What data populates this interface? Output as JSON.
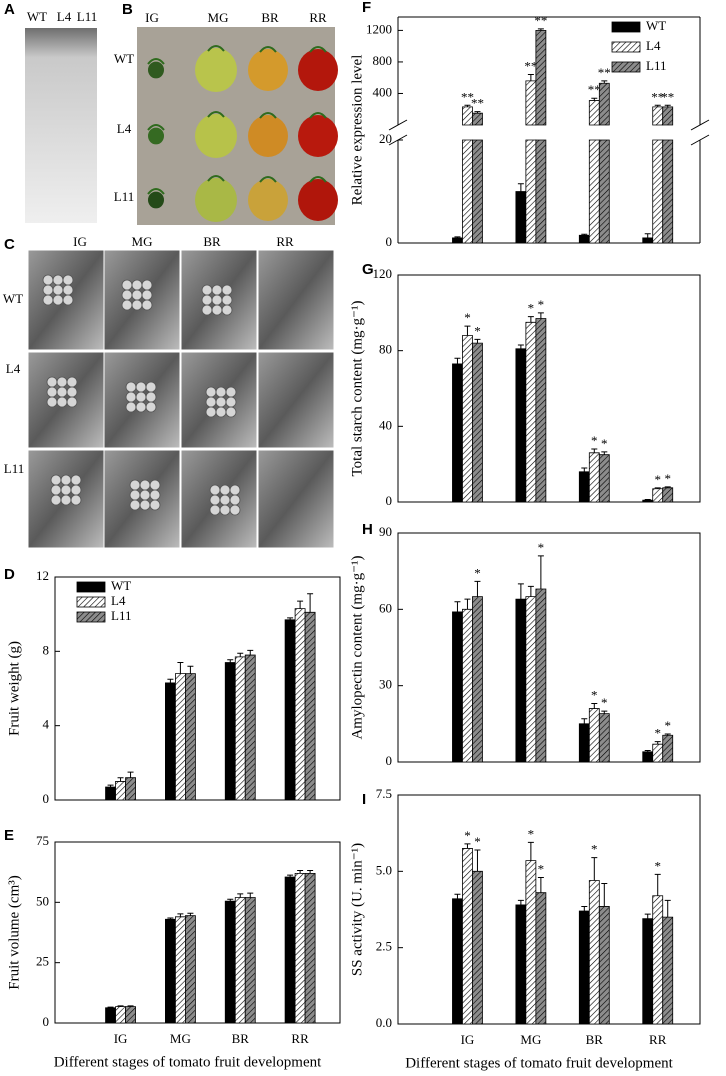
{
  "panel_a": {
    "letter": "A",
    "lanes": [
      "WT",
      "L4",
      "L11"
    ]
  },
  "panel_b": {
    "letter": "B",
    "columns": [
      "IG",
      "MG",
      "BR",
      "RR"
    ],
    "rows": [
      "WT",
      "L4",
      "L11"
    ]
  },
  "panel_c": {
    "letter": "C",
    "columns": [
      "IG",
      "MG",
      "BR",
      "RR"
    ],
    "rows": [
      "WT",
      "L4",
      "L11"
    ]
  },
  "chart_data": [
    {
      "type": "bar",
      "letter": "D",
      "ylabel": "Fruit weight (g)",
      "ylim": [
        0,
        12
      ],
      "yticks": [
        0,
        4,
        8,
        12
      ],
      "legend": "upper left",
      "series": [
        {
          "name": "WT",
          "color": "#000000",
          "hatch": false,
          "values": [
            0.7,
            6.3,
            7.4,
            9.7
          ],
          "errors": [
            0.1,
            0.2,
            0.15,
            0.1
          ]
        },
        {
          "name": "L4",
          "color": "#ffffff",
          "hatch": true,
          "values": [
            1.0,
            6.8,
            7.7,
            10.3
          ],
          "errors": [
            0.2,
            0.6,
            0.2,
            0.4
          ]
        },
        {
          "name": "L11",
          "color": "#8c8c8c",
          "hatch": true,
          "values": [
            1.2,
            6.8,
            7.8,
            10.1
          ],
          "errors": [
            0.3,
            0.4,
            0.25,
            1.0
          ]
        }
      ]
    },
    {
      "type": "bar",
      "letter": "E",
      "ylabel": "Fruit volume (cm³)",
      "xlabel": "Different stages of tomato fruit development",
      "categories": [
        "IG",
        "MG",
        "BR",
        "RR"
      ],
      "ylim": [
        0,
        75
      ],
      "yticks": [
        0,
        25,
        50,
        75
      ],
      "series": [
        {
          "color": "#000000",
          "hatch": false,
          "values": [
            6.3,
            43,
            50.5,
            60.5
          ],
          "errors": [
            0.3,
            0.5,
            0.8,
            0.8
          ]
        },
        {
          "color": "#ffffff",
          "hatch": true,
          "values": [
            6.8,
            44,
            52,
            62
          ],
          "errors": [
            0.3,
            1.2,
            1.5,
            1.2
          ]
        },
        {
          "color": "#8c8c8c",
          "hatch": true,
          "values": [
            6.8,
            44.5,
            52,
            62
          ],
          "errors": [
            0.3,
            1.0,
            1.8,
            1.2
          ]
        }
      ]
    },
    {
      "type": "bar",
      "letter": "F",
      "ylabel": "Relative expression level",
      "ylim": [
        0,
        20
      ],
      "yticks": [
        0,
        20
      ],
      "ylim_upper": [
        0,
        1370
      ],
      "yticks_upper": [
        400,
        800,
        1200
      ],
      "legend": "upper right",
      "series": [
        {
          "name": "WT",
          "color": "#000000",
          "hatch": false,
          "values": [
            1,
            10,
            1.5,
            1
          ],
          "errors": [
            0.2,
            1.5,
            0.2,
            0.8
          ]
        },
        {
          "name": "L4",
          "color": "#ffffff",
          "hatch": true,
          "values": [
            230,
            560,
            310,
            230
          ],
          "errors": [
            20,
            80,
            30,
            20
          ],
          "sig": [
            "**",
            "**",
            "**",
            "**"
          ]
        },
        {
          "name": "L11",
          "color": "#8c8c8c",
          "hatch": true,
          "values": [
            150,
            1200,
            530,
            230
          ],
          "errors": [
            20,
            20,
            30,
            20
          ],
          "sig": [
            "**",
            "**",
            "**",
            "**"
          ]
        }
      ]
    },
    {
      "type": "bar",
      "letter": "G",
      "ylabel": "Total starch content (mg·g⁻¹)",
      "ylim": [
        0,
        120
      ],
      "yticks": [
        0,
        40,
        80,
        120
      ],
      "series": [
        {
          "color": "#000000",
          "hatch": false,
          "values": [
            73,
            81,
            16,
            1
          ],
          "errors": [
            3,
            2,
            2,
            0.3
          ]
        },
        {
          "color": "#ffffff",
          "hatch": true,
          "values": [
            88,
            95,
            26,
            7
          ],
          "errors": [
            5,
            3,
            2,
            0.5
          ],
          "sig": [
            "*",
            "*",
            "*",
            "*"
          ]
        },
        {
          "color": "#8c8c8c",
          "hatch": true,
          "values": [
            84,
            97,
            25,
            7.5
          ],
          "errors": [
            2,
            3,
            1.5,
            0.5
          ],
          "sig": [
            "*",
            "*",
            "*",
            "*"
          ]
        }
      ]
    },
    {
      "type": "bar",
      "letter": "H",
      "ylabel": "Amylopectin content (mg·g⁻¹)",
      "ylim": [
        0,
        90
      ],
      "yticks": [
        0,
        30,
        60,
        90
      ],
      "series": [
        {
          "color": "#000000",
          "hatch": false,
          "values": [
            59,
            64,
            15,
            4
          ],
          "errors": [
            4,
            6,
            2,
            0.5
          ]
        },
        {
          "color": "#ffffff",
          "hatch": true,
          "values": [
            60,
            65,
            21,
            7
          ],
          "errors": [
            4,
            4,
            2,
            1
          ],
          "sig": [
            null,
            null,
            "*",
            "*"
          ]
        },
        {
          "color": "#8c8c8c",
          "hatch": true,
          "values": [
            65,
            68,
            19,
            10.5
          ],
          "errors": [
            6,
            13,
            1,
            0.5
          ],
          "sig": [
            "*",
            "*",
            "*",
            "*"
          ]
        }
      ]
    },
    {
      "type": "bar",
      "letter": "I",
      "ylabel": "SS activity (U. min⁻¹)",
      "xlabel": "Different stages of tomato fruit development",
      "categories": [
        "IG",
        "MG",
        "BR",
        "RR"
      ],
      "ylim": [
        0,
        7.5
      ],
      "yticks": [
        {
          "value": 0,
          "label": "0.0"
        },
        2.5,
        {
          "value": 5,
          "label": "5.0"
        },
        7.5
      ],
      "series": [
        {
          "color": "#000000",
          "hatch": false,
          "values": [
            4.1,
            3.9,
            3.7,
            3.45
          ],
          "errors": [
            0.15,
            0.15,
            0.15,
            0.15
          ]
        },
        {
          "color": "#ffffff",
          "hatch": true,
          "values": [
            5.75,
            5.35,
            4.7,
            4.2
          ],
          "errors": [
            0.15,
            0.6,
            0.75,
            0.7
          ],
          "sig": [
            "*",
            "*",
            "*",
            "*"
          ]
        },
        {
          "color": "#8c8c8c",
          "hatch": true,
          "values": [
            5.0,
            4.3,
            3.85,
            3.5
          ],
          "errors": [
            0.7,
            0.5,
            0.75,
            0.55
          ],
          "sig": [
            "*",
            "*",
            null,
            null
          ]
        }
      ]
    }
  ]
}
